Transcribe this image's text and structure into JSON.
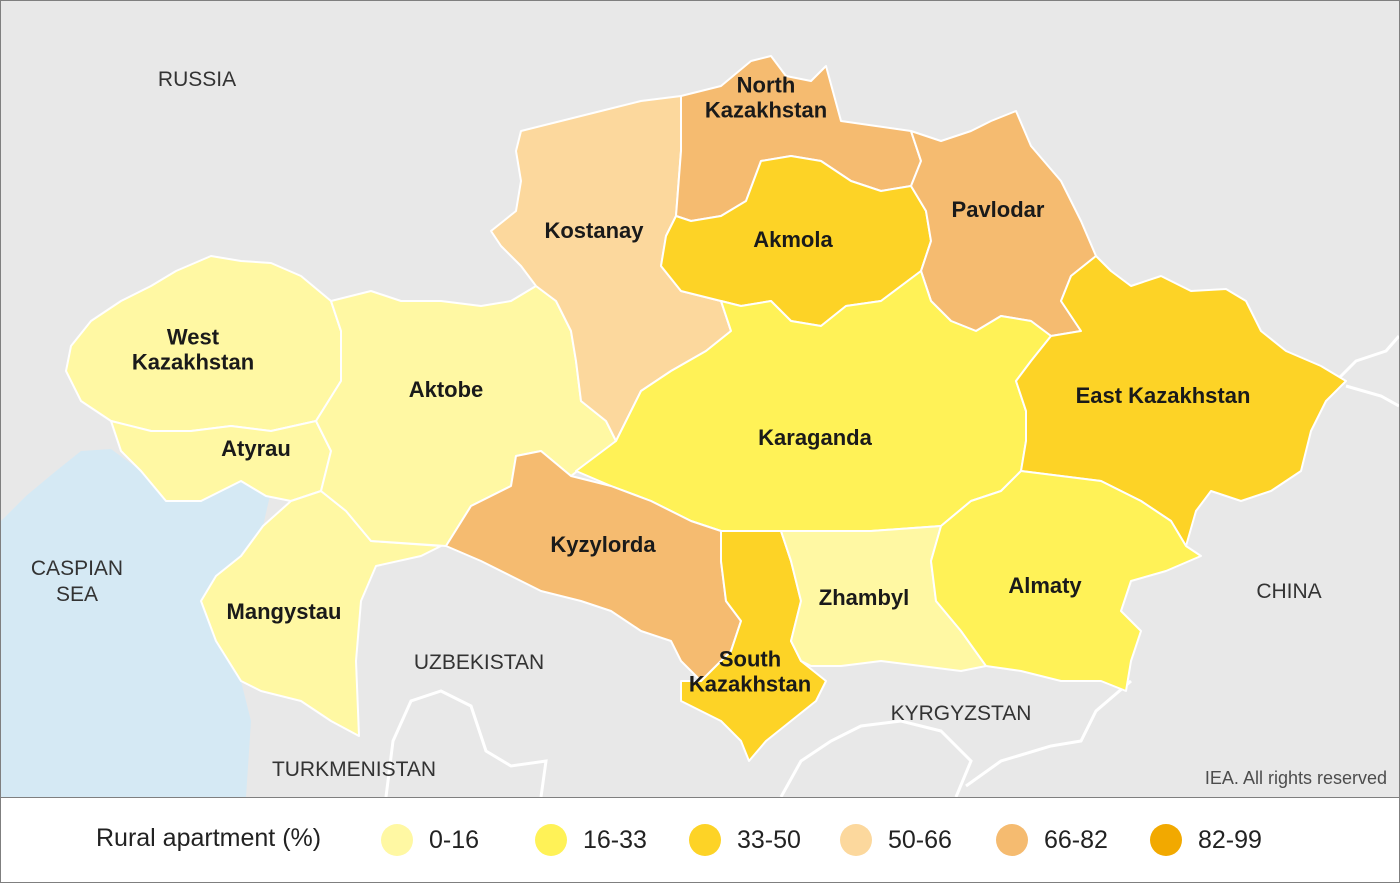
{
  "map": {
    "regions": [
      {
        "id": "west-kazakhstan",
        "label": [
          "West",
          "Kazakhstan"
        ],
        "bin": "0-16"
      },
      {
        "id": "atyrau",
        "label": [
          "Atyrau"
        ],
        "bin": "0-16"
      },
      {
        "id": "mangystau",
        "label": [
          "Mangystau"
        ],
        "bin": "0-16"
      },
      {
        "id": "aktobe",
        "label": [
          "Aktobe"
        ],
        "bin": "0-16"
      },
      {
        "id": "kostanay",
        "label": [
          "Kostanay"
        ],
        "bin": "50-66"
      },
      {
        "id": "north-kazakhstan",
        "label": [
          "North",
          "Kazakhstan"
        ],
        "bin": "66-82"
      },
      {
        "id": "akmola",
        "label": [
          "Akmola"
        ],
        "bin": "33-50"
      },
      {
        "id": "pavlodar",
        "label": [
          "Pavlodar"
        ],
        "bin": "66-82"
      },
      {
        "id": "karaganda",
        "label": [
          "Karaganda"
        ],
        "bin": "16-33"
      },
      {
        "id": "east-kazakhstan",
        "label": [
          "East Kazakhstan"
        ],
        "bin": "33-50"
      },
      {
        "id": "kyzylorda",
        "label": [
          "Kyzylorda"
        ],
        "bin": "66-82"
      },
      {
        "id": "south-kazakhstan",
        "label": [
          "South",
          "Kazakhstan"
        ],
        "bin": "33-50"
      },
      {
        "id": "zhambyl",
        "label": [
          "Zhambyl"
        ],
        "bin": "0-16"
      },
      {
        "id": "almaty",
        "label": [
          "Almaty"
        ],
        "bin": "16-33"
      }
    ],
    "countries": [
      {
        "id": "russia",
        "label": [
          "RUSSIA"
        ]
      },
      {
        "id": "caspian-sea",
        "label": [
          "CASPIAN",
          "SEA"
        ]
      },
      {
        "id": "uzbekistan",
        "label": [
          "UZBEKISTAN"
        ]
      },
      {
        "id": "turkmenistan",
        "label": [
          "TURKMENISTAN"
        ]
      },
      {
        "id": "kyrgyzstan",
        "label": [
          "KYRGYZSTAN"
        ]
      },
      {
        "id": "china",
        "label": [
          "CHINA"
        ]
      }
    ],
    "colors": {
      "land": "#e8e8e8",
      "sea": "#d5e9f4",
      "border": "#ffffff"
    }
  },
  "copyright": "IEA. All rights reserved",
  "legend": {
    "title": "Rural apartment (%)",
    "items": [
      {
        "label": "0-16",
        "color": "#fff8a3"
      },
      {
        "label": "16-33",
        "color": "#fff257"
      },
      {
        "label": "33-50",
        "color": "#fdd326"
      },
      {
        "label": "50-66",
        "color": "#fcd89d"
      },
      {
        "label": "66-82",
        "color": "#f5bb70"
      },
      {
        "label": "82-99",
        "color": "#f2a900"
      }
    ]
  }
}
